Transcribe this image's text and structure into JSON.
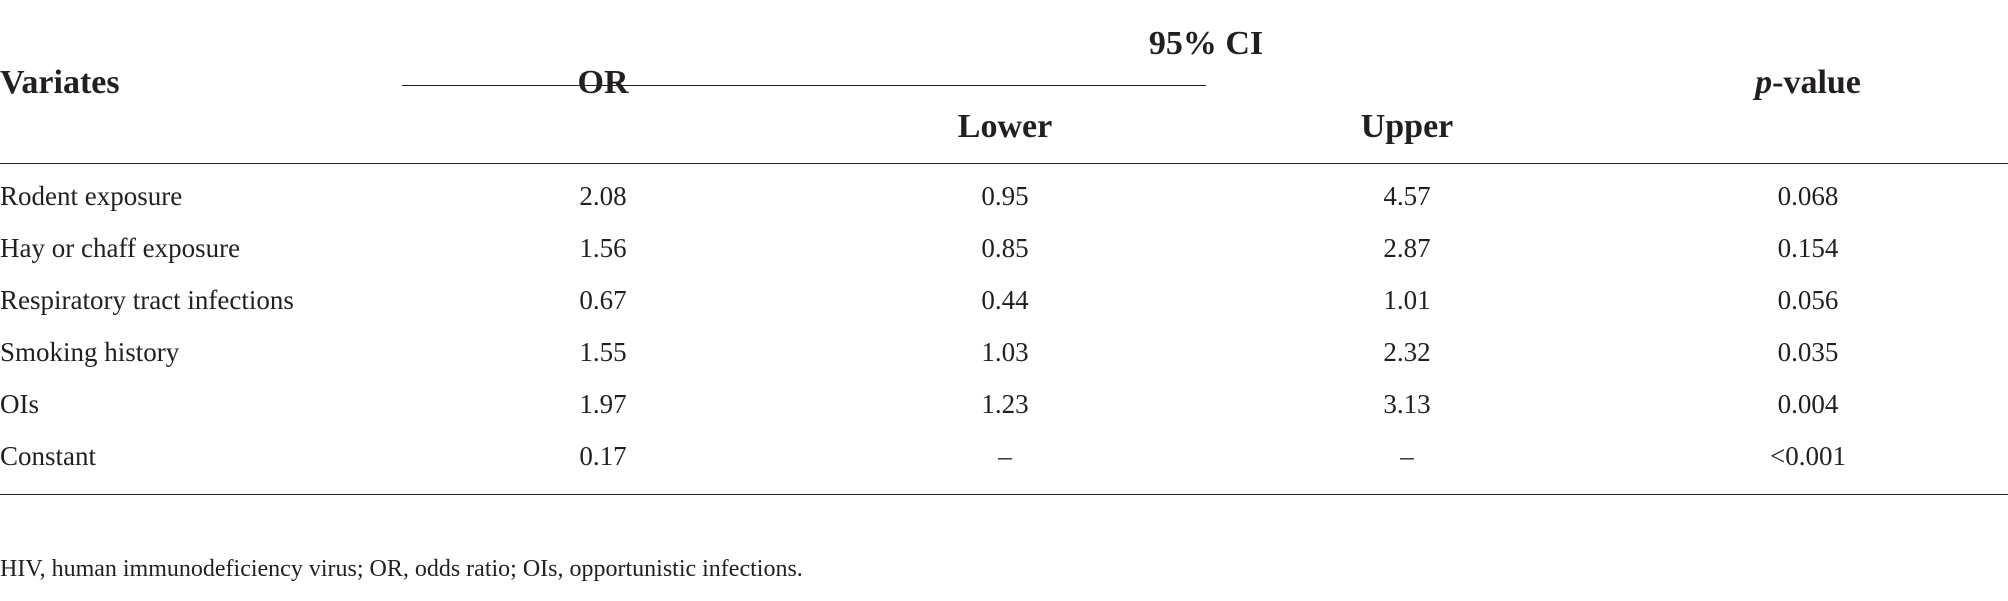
{
  "table": {
    "headers": {
      "variates": "Variates",
      "or": "OR",
      "ci": "95% CI",
      "lower": "Lower",
      "upper": "Upper",
      "p_italic": "p",
      "p_rest": "-value"
    },
    "rows": [
      {
        "variate": "Rodent exposure",
        "or": "2.08",
        "lower": "0.95",
        "upper": "4.57",
        "p": "0.068"
      },
      {
        "variate": "Hay or chaff exposure",
        "or": "1.56",
        "lower": "0.85",
        "upper": "2.87",
        "p": "0.154"
      },
      {
        "variate": "Respiratory tract infections",
        "or": "0.67",
        "lower": "0.44",
        "upper": "1.01",
        "p": "0.056"
      },
      {
        "variate": "Smoking history",
        "or": "1.55",
        "lower": "1.03",
        "upper": "2.32",
        "p": "0.035"
      },
      {
        "variate": "OIs",
        "or": "1.97",
        "lower": "1.23",
        "upper": "3.13",
        "p": "0.004"
      },
      {
        "variate": "Constant",
        "or": "0.17",
        "lower": "–",
        "upper": "–",
        "p": "<0.001"
      }
    ]
  },
  "footnote": "HIV, human immunodeficiency virus; OR, odds ratio; OIs, opportunistic infections."
}
